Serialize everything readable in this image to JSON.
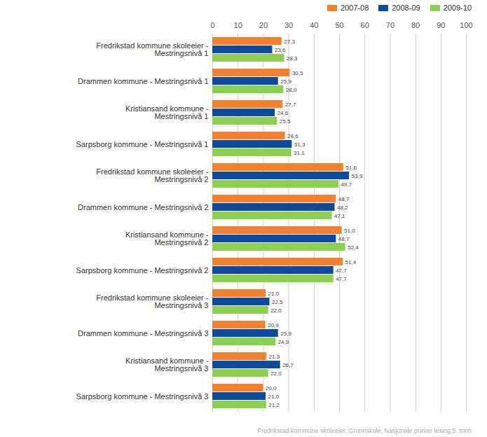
{
  "chart_data": {
    "type": "bar",
    "orientation": "horizontal",
    "caption": "Fredrikstad kommune skoleeier, Grunnskole, Nasjonale prøver lesing 5. trinn",
    "categories": [
      "Fredrikstad kommune skoleeier - Mestringsnivå 1",
      "Drammen kommune - Mestringsnivå 1",
      "Kristiansand kommune - Mestringsnivå 1",
      "Sarpsborg kommune - Mestringsnivå 1",
      "Fredrikstad kommune skoleeier - Mestringsnivå 2",
      "Drammen kommune - Mestringsnivå 2",
      "Kristiansand kommune - Mestringsnivå 2",
      "Sarpsborg kommune - Mestringsnivå 2",
      "Fredrikstad kommune skoleeier - Mestringsnivå 3",
      "Drammen kommune - Mestringsnivå 3",
      "Kristiansand kommune - Mestringsnivå 3",
      "Sarpsborg kommune - Mestringsnivå 3"
    ],
    "series": [
      {
        "name": "2007-08",
        "color": "#f5812f",
        "values": [
          27.3,
          30.5,
          27.7,
          28.6,
          51.6,
          48.7,
          51.0,
          51.4,
          21.0,
          20.9,
          21.3,
          20.0
        ],
        "value_labels": [
          "27,3",
          "30,5",
          "27,7",
          "28,6",
          "51,6",
          "48,7",
          "51,0",
          "51,4",
          "21,0",
          "20,9",
          "21,3",
          "20,0"
        ]
      },
      {
        "name": "2008-09",
        "color": "#0c4a9c",
        "values": [
          23.6,
          25.9,
          24.6,
          31.3,
          53.9,
          48.2,
          48.7,
          47.7,
          22.5,
          25.9,
          26.7,
          21.0
        ],
        "value_labels": [
          "23,6",
          "25,9",
          "24,6",
          "31,3",
          "53,9",
          "48,2",
          "48,7",
          "47,7",
          "22,5",
          "25,9",
          "26,7",
          "21,0"
        ]
      },
      {
        "name": "2009-10",
        "color": "#8dcf4f",
        "values": [
          28.3,
          28.0,
          25.5,
          31.1,
          49.7,
          47.1,
          52.4,
          47.7,
          22.0,
          24.9,
          22.0,
          21.2
        ],
        "value_labels": [
          "28,3",
          "28,0",
          "25,5",
          "31,1",
          "49,7",
          "47,1",
          "52,4",
          "47,7",
          "22,0",
          "24,9",
          "22,0",
          "21,2"
        ]
      }
    ],
    "xlim": [
      0,
      100
    ],
    "xticks": [
      0,
      10,
      20,
      30,
      40,
      50,
      60,
      70,
      80,
      90,
      100
    ],
    "grid": true,
    "legend": "top-right",
    "data_labels": true
  }
}
